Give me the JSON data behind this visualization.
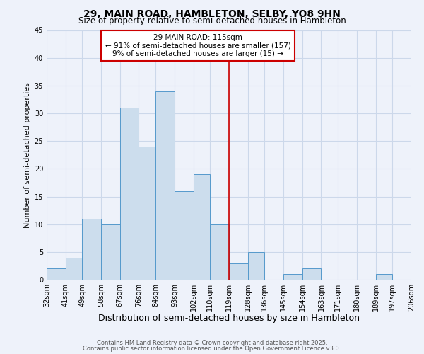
{
  "title": "29, MAIN ROAD, HAMBLETON, SELBY, YO8 9HN",
  "subtitle": "Size of property relative to semi-detached houses in Hambleton",
  "xlabel": "Distribution of semi-detached houses by size in Hambleton",
  "ylabel": "Number of semi-detached properties",
  "bin_labels": [
    "32sqm",
    "41sqm",
    "49sqm",
    "58sqm",
    "67sqm",
    "76sqm",
    "84sqm",
    "93sqm",
    "102sqm",
    "110sqm",
    "119sqm",
    "128sqm",
    "136sqm",
    "145sqm",
    "154sqm",
    "163sqm",
    "171sqm",
    "180sqm",
    "189sqm",
    "197sqm",
    "206sqm"
  ],
  "bar_heights": [
    2,
    4,
    11,
    10,
    31,
    24,
    34,
    16,
    19,
    10,
    3,
    5,
    0,
    1,
    2,
    0,
    0,
    0,
    1,
    0
  ],
  "bin_edges": [
    32,
    41,
    49,
    58,
    67,
    76,
    84,
    93,
    102,
    110,
    119,
    128,
    136,
    145,
    154,
    163,
    171,
    180,
    189,
    197,
    206
  ],
  "bar_color": "#ccdded",
  "bar_edgecolor": "#5599cc",
  "vline_x": 119,
  "vline_color": "#cc0000",
  "annotation_title": "29 MAIN ROAD: 115sqm",
  "annotation_line1": "← 91% of semi-detached houses are smaller (157)",
  "annotation_line2": "9% of semi-detached houses are larger (15) →",
  "annotation_box_color": "#ffffff",
  "annotation_box_edgecolor": "#cc0000",
  "ylim": [
    0,
    45
  ],
  "yticks": [
    0,
    5,
    10,
    15,
    20,
    25,
    30,
    35,
    40,
    45
  ],
  "grid_color": "#ccd8ea",
  "bg_color": "#eef2fa",
  "footer1": "Contains HM Land Registry data © Crown copyright and database right 2025.",
  "footer2": "Contains public sector information licensed under the Open Government Licence v3.0.",
  "title_fontsize": 10,
  "subtitle_fontsize": 8.5,
  "xlabel_fontsize": 9,
  "ylabel_fontsize": 8,
  "tick_fontsize": 7,
  "footer_fontsize": 6,
  "annotation_fontsize": 7.5
}
